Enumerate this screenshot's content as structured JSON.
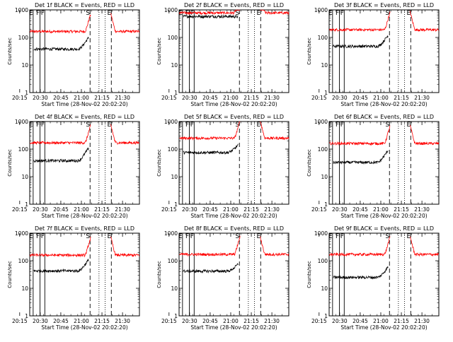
{
  "chart_data": {
    "type": "line",
    "time_axis_label": "Start Time (28-Nov-02 20:02:20)",
    "ylabel": "Counts/sec",
    "yscale": "log",
    "ylim": [
      1,
      1000
    ],
    "y_ticks": [
      "1",
      "10",
      "100",
      "1000"
    ],
    "x_ticks": [
      "20:15",
      "20:30",
      "20:45",
      "21:00",
      "21:15",
      "21:30"
    ],
    "xlim_minutes": [
      20.0,
      100.0
    ],
    "colors": {
      "events": "#000000",
      "lld": "#ff0000"
    },
    "markers": [
      {
        "label": "E",
        "t": 22.5,
        "style": "solid"
      },
      {
        "label": "F",
        "t": 27.5,
        "style": "solid"
      },
      {
        "label": "F",
        "t": 31.0,
        "style": "solid"
      },
      {
        "label": "S",
        "t": 64.0,
        "style": "dashed"
      },
      {
        "label": "E",
        "t": 79.5,
        "style": "dashed"
      }
    ],
    "extra_lines": [
      {
        "t": 70.5,
        "style": "dotted"
      },
      {
        "t": 75.0,
        "style": "dotted"
      }
    ],
    "panels": [
      {
        "title": "Det 1f BLACK = Events, RED = LLD",
        "events_base": 38,
        "lld_base": 165,
        "events_end": 100
      },
      {
        "title": "Det 2f BLACK = Events, RED = LLD",
        "events_base": 580,
        "lld_base": 780,
        "events_end": 560
      },
      {
        "title": "Det 3f BLACK = Events, RED = LLD",
        "events_base": 48,
        "lld_base": 190,
        "events_end": 120
      },
      {
        "title": "Det 4f BLACK = Events, RED = LLD",
        "events_base": 38,
        "lld_base": 170,
        "events_end": 110
      },
      {
        "title": "Det 5f BLACK = Events, RED = LLD",
        "events_base": 75,
        "lld_base": 250,
        "events_end": 140
      },
      {
        "title": "Det 6f BLACK = Events, RED = LLD",
        "events_base": 33,
        "lld_base": 160,
        "events_end": 90
      },
      {
        "title": "Det 7f BLACK = Events, RED = LLD",
        "events_base": 43,
        "lld_base": 160,
        "events_end": 110
      },
      {
        "title": "Det 8f BLACK = Events, RED = LLD",
        "events_base": 42,
        "lld_base": 170,
        "events_end": 75
      },
      {
        "title": "Det 9f BLACK = Events, RED = LLD",
        "events_base": 25,
        "lld_base": 170,
        "events_end": 60
      }
    ]
  }
}
